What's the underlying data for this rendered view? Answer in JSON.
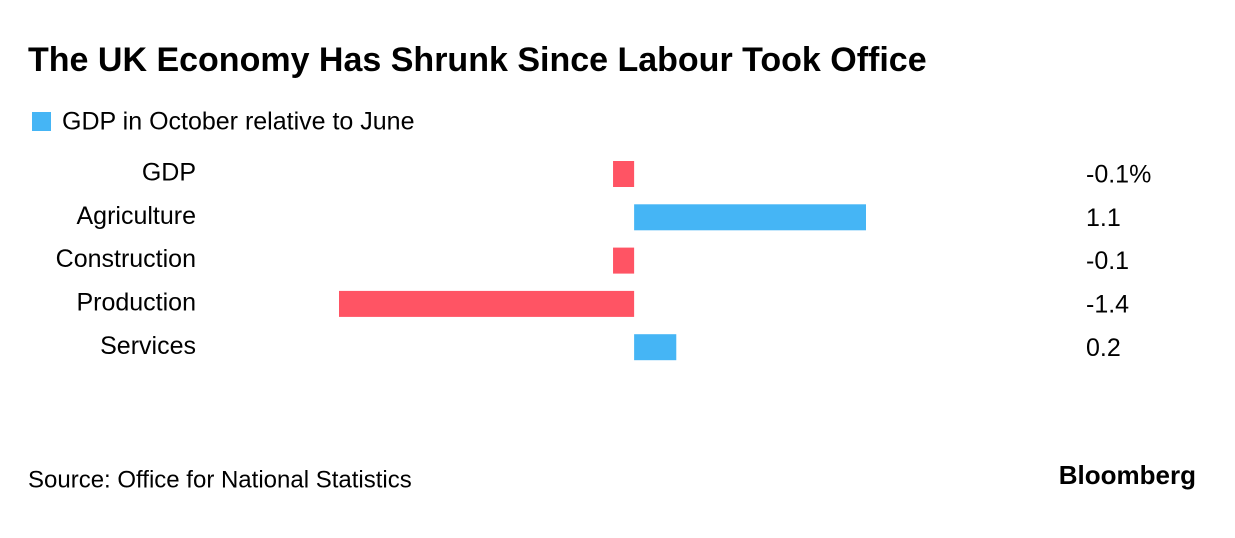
{
  "chart_data": {
    "type": "bar",
    "orientation": "horizontal",
    "title": "The UK Economy Has Shrunk Since Labour Took Office",
    "legend": {
      "name": "GDP in October relative to June",
      "color": "#45b5f5"
    },
    "categories": [
      "GDP",
      "Agriculture",
      "Construction",
      "Production",
      "Services"
    ],
    "values": [
      -0.1,
      1.1,
      -0.1,
      -1.4,
      0.2
    ],
    "value_labels": [
      "-0.1%",
      "1.1",
      "-0.1",
      "-1.4",
      "0.2"
    ],
    "colors": [
      "#ff5464",
      "#45b5f5",
      "#ff5464",
      "#ff5464",
      "#45b5f5"
    ],
    "xlim": [
      -1.4,
      1.1
    ],
    "source": "Source: Office for National Statistics",
    "brand": "Bloomberg"
  }
}
